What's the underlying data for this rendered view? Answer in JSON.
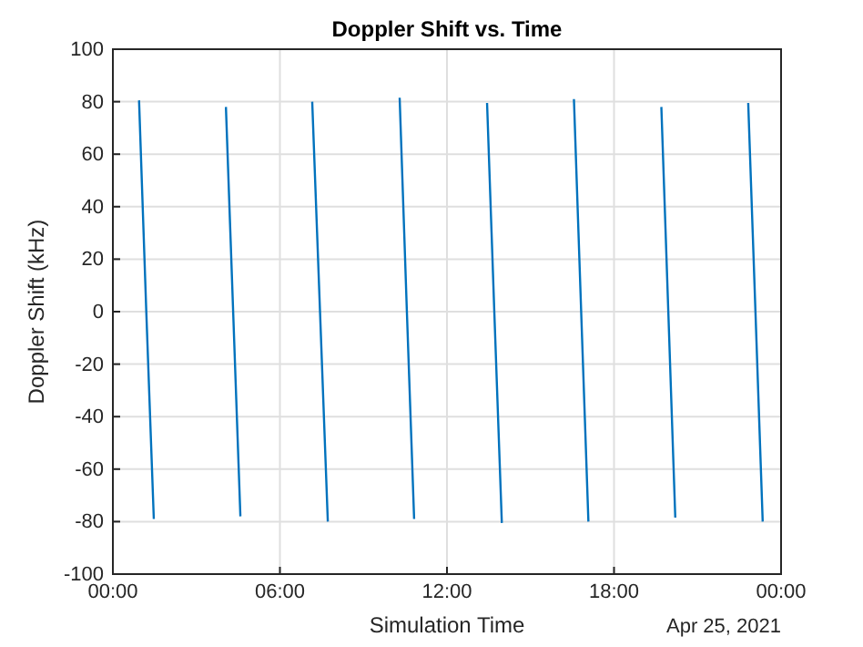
{
  "chart_data": {
    "type": "line",
    "title": "Doppler Shift vs. Time",
    "xlabel": "Simulation Time",
    "ylabel": "Doppler Shift (kHz)",
    "annotations": [
      "Apr 25, 2021"
    ],
    "series": [
      {
        "color": "#0072bd",
        "x": [
          0.94,
          1.2,
          1.47,
          null,
          4.06,
          4.32,
          4.58,
          null,
          7.16,
          7.44,
          7.72,
          null,
          10.3,
          10.56,
          10.82,
          null,
          13.44,
          13.7,
          13.97,
          null,
          16.56,
          16.82,
          17.08,
          null,
          19.7,
          19.95,
          20.2,
          null,
          22.82,
          23.08,
          23.34
        ],
        "values": [
          80.5,
          0,
          -79,
          null,
          78,
          0,
          -78,
          null,
          80,
          0,
          -80,
          null,
          81.5,
          0,
          -79,
          null,
          79.5,
          0,
          -80.5,
          null,
          81,
          0,
          -80,
          null,
          78,
          0,
          -78.5,
          null,
          79.5,
          0,
          -80
        ]
      }
    ],
    "xlim": [
      0,
      24
    ],
    "xticks": [
      {
        "value": 0,
        "label": "00:00"
      },
      {
        "value": 6,
        "label": "06:00"
      },
      {
        "value": 12,
        "label": "12:00"
      },
      {
        "value": 18,
        "label": "18:00"
      },
      {
        "value": 24,
        "label": "00:00"
      }
    ],
    "ylim": [
      -100,
      100
    ],
    "yticks": [
      -100,
      -80,
      -60,
      -40,
      -20,
      0,
      20,
      40,
      60,
      80,
      100
    ],
    "grid": true,
    "line_style": "solid",
    "marker": "none"
  }
}
